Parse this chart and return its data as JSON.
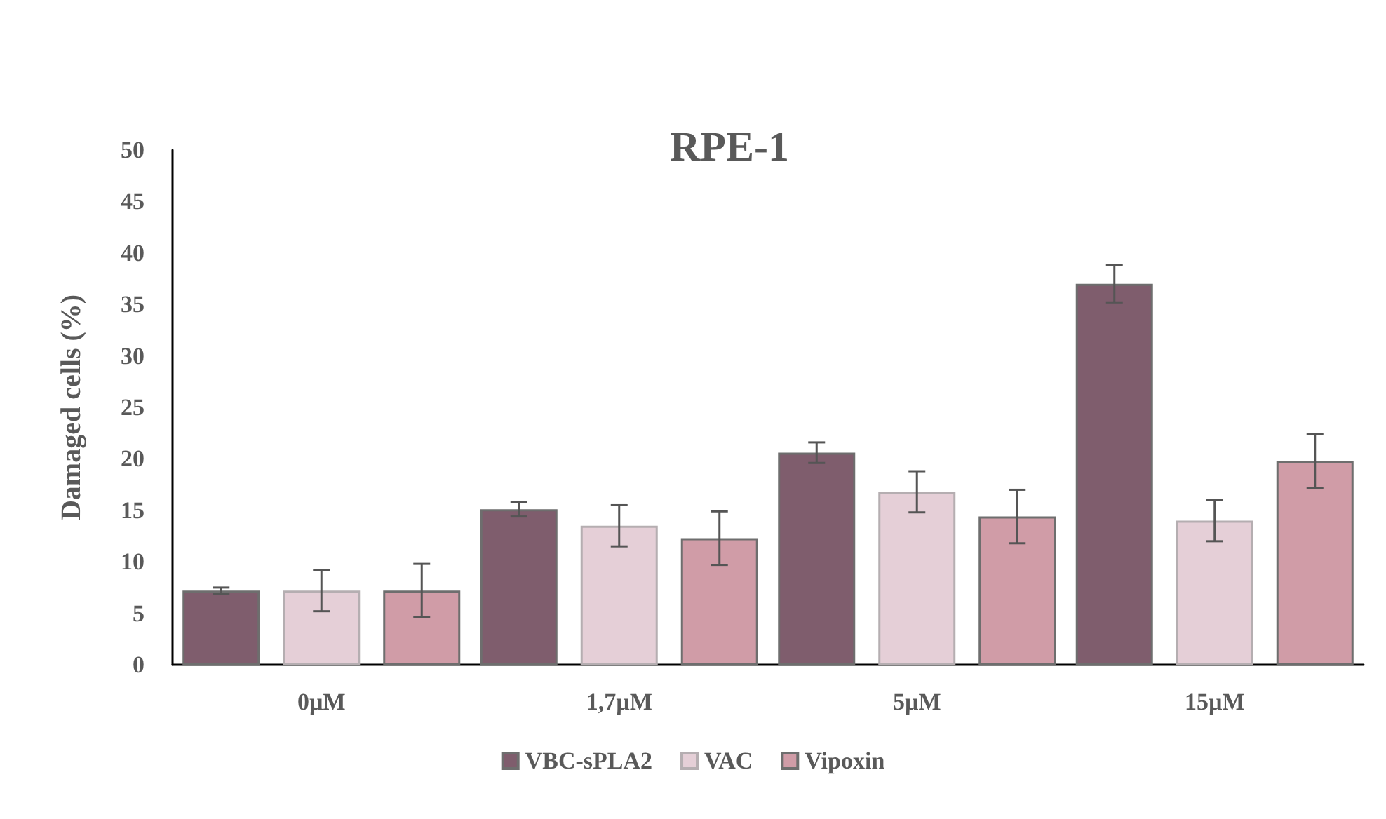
{
  "chart_data": {
    "type": "bar",
    "title": "RPE-1",
    "ylabel": "Damaged cells (%)",
    "categories": [
      "0µM",
      "1,7µM",
      "5µM",
      "15µM"
    ],
    "series": [
      {
        "name": "VBC-sPLA2",
        "color": "#7f5d6d",
        "values": [
          7.2,
          15.1,
          20.6,
          37.0
        ],
        "errors": [
          0.3,
          0.7,
          1.0,
          1.8
        ]
      },
      {
        "name": "VAC",
        "color": "#e5cfd7",
        "values": [
          7.2,
          13.5,
          16.8,
          14.0
        ],
        "errors": [
          2.0,
          2.0,
          2.0,
          2.0
        ]
      },
      {
        "name": "Vipoxin",
        "color": "#d09ca7",
        "values": [
          7.2,
          12.3,
          14.4,
          19.8
        ],
        "errors": [
          2.6,
          2.6,
          2.6,
          2.6
        ]
      }
    ],
    "ylim": [
      0,
      50
    ],
    "yticks": [
      0,
      5,
      10,
      15,
      20,
      25,
      30,
      35,
      40,
      45,
      50
    ],
    "grid": false,
    "legend": "bottom"
  }
}
